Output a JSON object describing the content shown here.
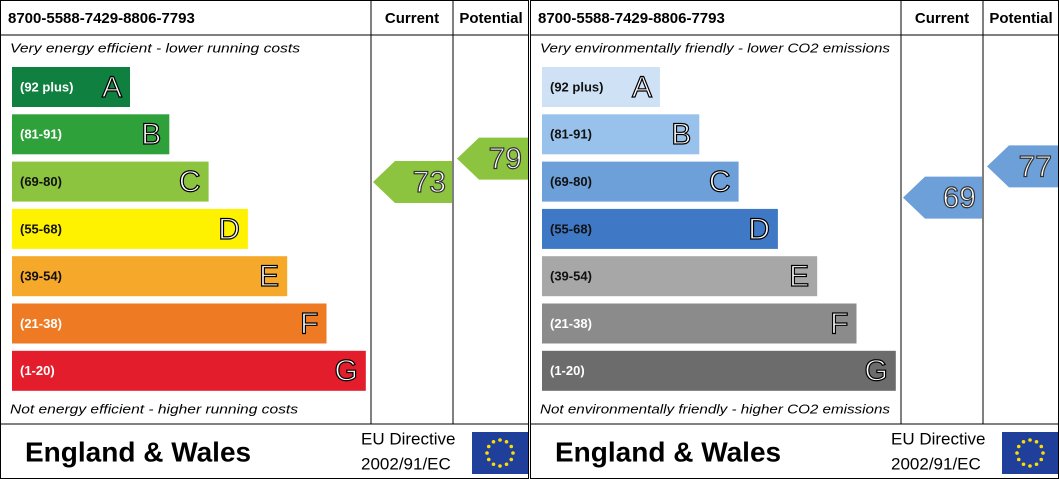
{
  "panels": [
    {
      "ref": "8700-5588-7429-8806-7793",
      "current_header": "Current",
      "potential_header": "Potential",
      "top_note": "Very energy efficient - lower running costs",
      "bottom_note": "Not energy efficient - higher running costs",
      "bands": [
        {
          "range": "(92 plus)",
          "letter": "A",
          "color": "#0f8040",
          "text_color": "#ffffff"
        },
        {
          "range": "(81-91)",
          "letter": "B",
          "color": "#2ea13b",
          "text_color": "#ffffff"
        },
        {
          "range": "(69-80)",
          "letter": "C",
          "color": "#8cc43f",
          "text_color": "#111111"
        },
        {
          "range": "(55-68)",
          "letter": "D",
          "color": "#fff200",
          "text_color": "#111111"
        },
        {
          "range": "(39-54)",
          "letter": "E",
          "color": "#f5a82a",
          "text_color": "#111111"
        },
        {
          "range": "(21-38)",
          "letter": "F",
          "color": "#ee7a23",
          "text_color": "#ffffff"
        },
        {
          "range": "(1-20)",
          "letter": "G",
          "color": "#e31d2b",
          "text_color": "#ffffff"
        }
      ],
      "current": {
        "value": 73,
        "color": "#8cc43f"
      },
      "potential": {
        "value": 79,
        "color": "#8cc43f"
      },
      "region": "England & Wales",
      "directive": "EU Directive",
      "directive_code": "2002/91/EC"
    },
    {
      "ref": "8700-5588-7429-8806-7793",
      "current_header": "Current",
      "potential_header": "Potential",
      "top_note": "Very environmentally friendly - lower CO2 emissions",
      "bottom_note": "Not environmentally friendly - higher CO2 emissions",
      "bands": [
        {
          "range": "(92 plus)",
          "letter": "A",
          "color": "#cfe2f5",
          "text_color": "#111111"
        },
        {
          "range": "(81-91)",
          "letter": "B",
          "color": "#98c2ec",
          "text_color": "#111111"
        },
        {
          "range": "(69-80)",
          "letter": "C",
          "color": "#6d9fd8",
          "text_color": "#111111"
        },
        {
          "range": "(55-68)",
          "letter": "D",
          "color": "#3f78c4",
          "text_color": "#111111"
        },
        {
          "range": "(39-54)",
          "letter": "E",
          "color": "#a7a7a7",
          "text_color": "#111111"
        },
        {
          "range": "(21-38)",
          "letter": "F",
          "color": "#8b8b8b",
          "text_color": "#ffffff"
        },
        {
          "range": "(1-20)",
          "letter": "G",
          "color": "#6c6c6c",
          "text_color": "#ffffff"
        }
      ],
      "current": {
        "value": 69,
        "color": "#6d9fd8"
      },
      "potential": {
        "value": 77,
        "color": "#6d9fd8"
      },
      "region": "England & Wales",
      "directive": "EU Directive",
      "directive_code": "2002/91/EC"
    }
  ]
}
